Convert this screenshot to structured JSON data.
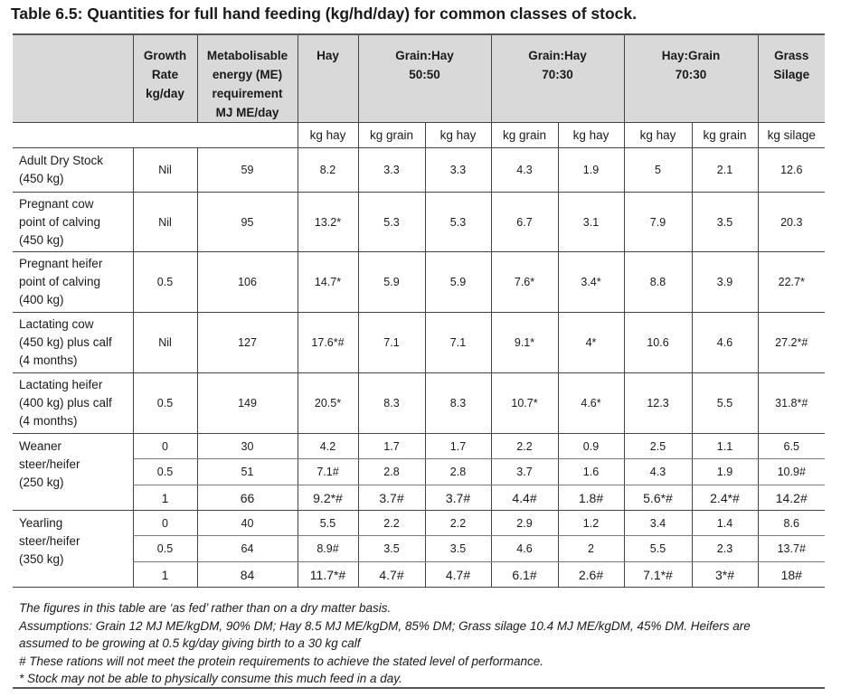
{
  "title": "Table 6.5: Quantities for full hand feeding (kg/hd/day) for common classes of stock.",
  "header": {
    "growth": [
      "Growth",
      "Rate",
      "kg/day"
    ],
    "me": [
      "Metabolisable",
      "energy (ME)",
      "requirement",
      "MJ ME/day"
    ],
    "hay": [
      "Hay"
    ],
    "gh5050": [
      "Grain:Hay",
      "50:50"
    ],
    "gh7030": [
      "Grain:Hay",
      "70:30"
    ],
    "hg7030": [
      "Hay:Grain",
      "70:30"
    ],
    "silage": [
      "Grass",
      "Silage"
    ]
  },
  "units": [
    "kg hay",
    "kg grain",
    "kg hay",
    "kg grain",
    "kg hay",
    "kg hay",
    "kg grain",
    "kg silage"
  ],
  "rows": [
    {
      "label": [
        "Adult Dry Stock",
        "(450 kg)"
      ],
      "values": [
        "Nil",
        "59",
        "8.2",
        "3.3",
        "3.3",
        "4.3",
        "1.9",
        "5",
        "2.1",
        "12.6"
      ]
    },
    {
      "label": [
        "Pregnant cow",
        "point of calving",
        "(450 kg)"
      ],
      "values": [
        "Nil",
        "95",
        "13.2*",
        "5.3",
        "5.3",
        "6.7",
        "3.1",
        "7.9",
        "3.5",
        "20.3"
      ]
    },
    {
      "label": [
        "Pregnant heifer",
        "point of calving",
        "(400 kg)"
      ],
      "values": [
        "0.5",
        "106",
        "14.7*",
        "5.9",
        "5.9",
        "7.6*",
        "3.4*",
        "8.8",
        "3.9",
        "22.7*"
      ]
    },
    {
      "label": [
        "Lactating cow",
        "(450 kg) plus calf",
        "(4 months)"
      ],
      "values": [
        "Nil",
        "127",
        "17.6*#",
        "7.1",
        "7.1",
        "9.1*",
        "4*",
        "10.6",
        "4.6",
        "27.2*#"
      ]
    },
    {
      "label": [
        "Lactating heifer",
        "(400 kg) plus calf",
        "(4 months)"
      ],
      "values": [
        "0.5",
        "149",
        "20.5*",
        "8.3",
        "8.3",
        "10.7*",
        "4.6*",
        "12.3",
        "5.5",
        "31.8*#"
      ]
    }
  ],
  "groups": [
    {
      "label": [
        "Weaner",
        "steer/heifer",
        "(250 kg)"
      ],
      "subrows": [
        [
          "0",
          "30",
          "4.2",
          "1.7",
          "1.7",
          "2.2",
          "0.9",
          "2.5",
          "1.1",
          "6.5"
        ],
        [
          "0.5",
          "51",
          "7.1#",
          "2.8",
          "2.8",
          "3.7",
          "1.6",
          "4.3",
          "1.9",
          "10.9#"
        ],
        [
          "1",
          "66",
          "9.2*#",
          "3.7#",
          "3.7#",
          "4.4#",
          "1.8#",
          "5.6*#",
          "2.4*#",
          "14.2#"
        ]
      ]
    },
    {
      "label": [
        "Yearling",
        "steer/heifer",
        "(350 kg)"
      ],
      "subrows": [
        [
          "0",
          "40",
          "5.5",
          "2.2",
          "2.2",
          "2.9",
          "1.2",
          "3.4",
          "1.4",
          "8.6"
        ],
        [
          "0.5",
          "64",
          "8.9#",
          "3.5",
          "3.5",
          "4.6",
          "2",
          "5.5",
          "2.3",
          "13.7#"
        ],
        [
          "1",
          "84",
          "11.7*#",
          "4.7#",
          "4.7#",
          "6.1#",
          "2.6#",
          "7.1*#",
          "3*#",
          "18#"
        ]
      ]
    }
  ],
  "notes": [
    "The figures in this table are ‘as fed’ rather than on a dry matter basis.",
    "Assumptions: Grain 12 MJ ME/kgDM, 90% DM; Hay 8.5 MJ ME/kgDM, 85% DM; Grass silage 10.4 MJ ME/kgDM, 45% DM. Heifers are",
    "assumed to be growing at 0.5 kg/day giving birth to a 30 kg calf",
    "# These rations will not meet the protein requirements to achieve the stated level of performance.",
    "* Stock may not be able to physically consume this much feed in a day."
  ]
}
